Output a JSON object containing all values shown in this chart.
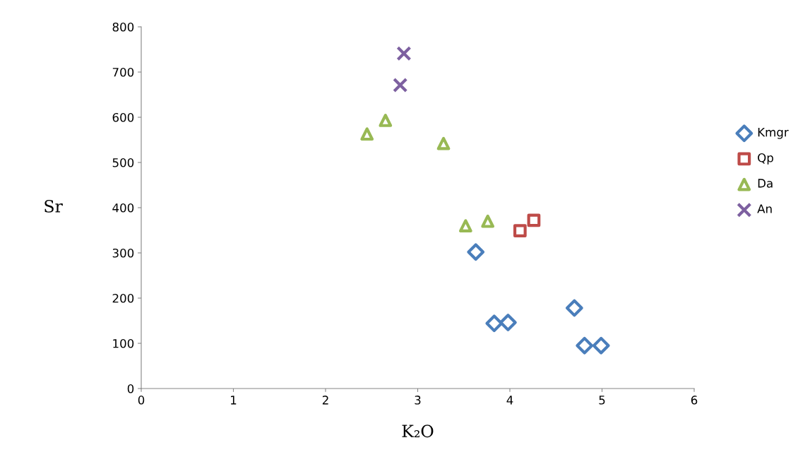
{
  "chart_data": {
    "type": "scatter",
    "xlabel": "K₂O",
    "ylabel": "Sr",
    "xlim": [
      0,
      6
    ],
    "ylim": [
      0,
      800
    ],
    "xticks": [
      0,
      1,
      2,
      3,
      4,
      5,
      6
    ],
    "yticks": [
      0,
      100,
      200,
      300,
      400,
      500,
      600,
      700,
      800
    ],
    "grid": false,
    "legend": "right",
    "series": [
      {
        "name": "Kmgr",
        "color": "#4a7ebb",
        "marker": "diamond",
        "x": [
          3.63,
          3.83,
          3.98,
          4.7,
          4.81,
          4.99
        ],
        "values": [
          302,
          144,
          146,
          178,
          95,
          95
        ]
      },
      {
        "name": "Qp",
        "color": "#be4b48",
        "marker": "square",
        "x": [
          4.11,
          4.26
        ],
        "values": [
          349,
          372
        ]
      },
      {
        "name": "Da",
        "color": "#98b954",
        "marker": "triangle",
        "x": [
          2.45,
          2.65,
          3.28,
          3.52,
          3.76
        ],
        "values": [
          563,
          593,
          542,
          360,
          370
        ]
      },
      {
        "name": "An",
        "color": "#7d60a0",
        "marker": "cross",
        "x": [
          2.85,
          2.81
        ],
        "values": [
          741,
          671
        ]
      }
    ]
  }
}
